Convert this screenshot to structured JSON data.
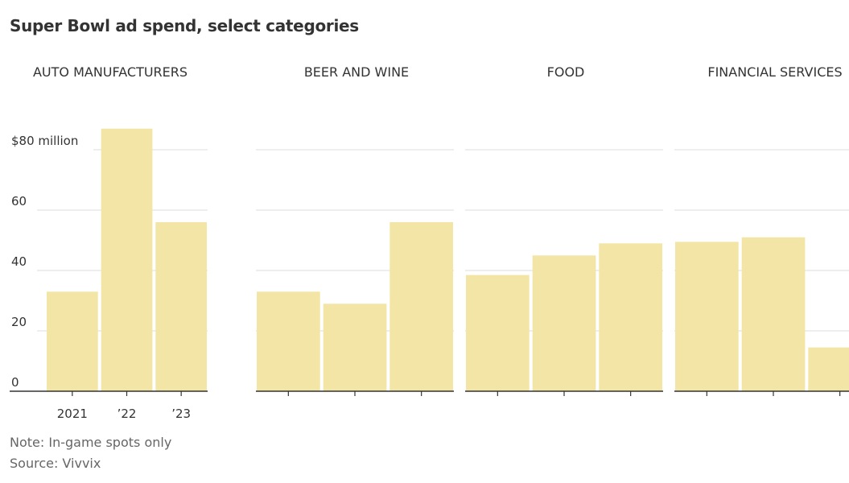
{
  "header": {
    "title": "Super Bowl ad spend, select categories"
  },
  "footer": {
    "note": "Note: In-game spots only",
    "source": "Source: Vivvix"
  },
  "colors": {
    "bar": "#f3e5a6",
    "text": "#333333",
    "grid": "#dcdcdc",
    "footer": "#666666"
  },
  "chart_data": {
    "type": "bar",
    "layout": "small-multiples",
    "categories": [
      "2021",
      "’22",
      "’23"
    ],
    "ylim": [
      0,
      85
    ],
    "yticks": [
      0,
      20,
      40,
      60,
      80
    ],
    "ytick_labels": [
      "0",
      "20",
      "40",
      "60",
      "$80 million"
    ],
    "grid": true,
    "panels": [
      {
        "title": "AUTO MANUFACTURERS",
        "values": [
          33,
          87,
          56
        ]
      },
      {
        "title": "BEER AND WINE",
        "values": [
          33,
          29,
          56
        ]
      },
      {
        "title": "FOOD",
        "values": [
          38.5,
          45,
          49
        ]
      },
      {
        "title": "FINANCIAL SERVICES",
        "values": [
          49.5,
          51,
          14.5
        ]
      }
    ]
  }
}
